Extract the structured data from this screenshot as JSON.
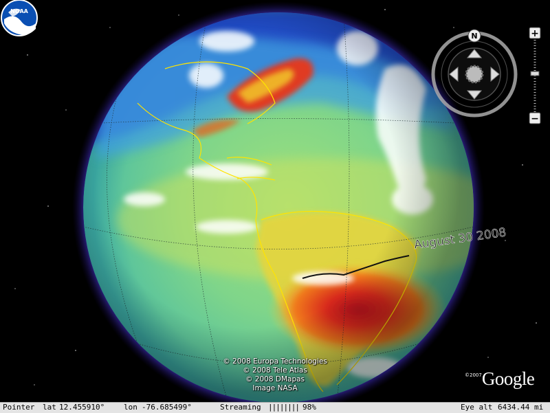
{
  "globe": {
    "date_label": "August 30 2008",
    "attribution": [
      "© 2008 Europa Technologies",
      "© 2008 Tele Atlas",
      "© 2008 DMapas",
      "Image NASA"
    ]
  },
  "logo": {
    "noaa_text": "NOAA"
  },
  "google": {
    "copyright": "©2007",
    "word": "Google"
  },
  "navigation": {
    "north_label": "N",
    "zoom_in": "+",
    "zoom_out": "−"
  },
  "statusbar": {
    "pointer_label": "Pointer",
    "lat_label": "lat",
    "lat_value": "12.455910°",
    "lon_label": "lon",
    "lon_value": "-76.685499°",
    "streaming_label": "Streaming",
    "streaming_bars": "||||||||",
    "streaming_percent": "98%",
    "eye_alt_label": "Eye alt",
    "eye_alt_value": "6434.44 mi"
  },
  "colors": {
    "space": "#000000",
    "halo": "#6a5cff",
    "ocean_mid": "#7fd58a",
    "hot": "#d82a1a",
    "cold": "#1e40c8",
    "coast": "#ffe400"
  }
}
